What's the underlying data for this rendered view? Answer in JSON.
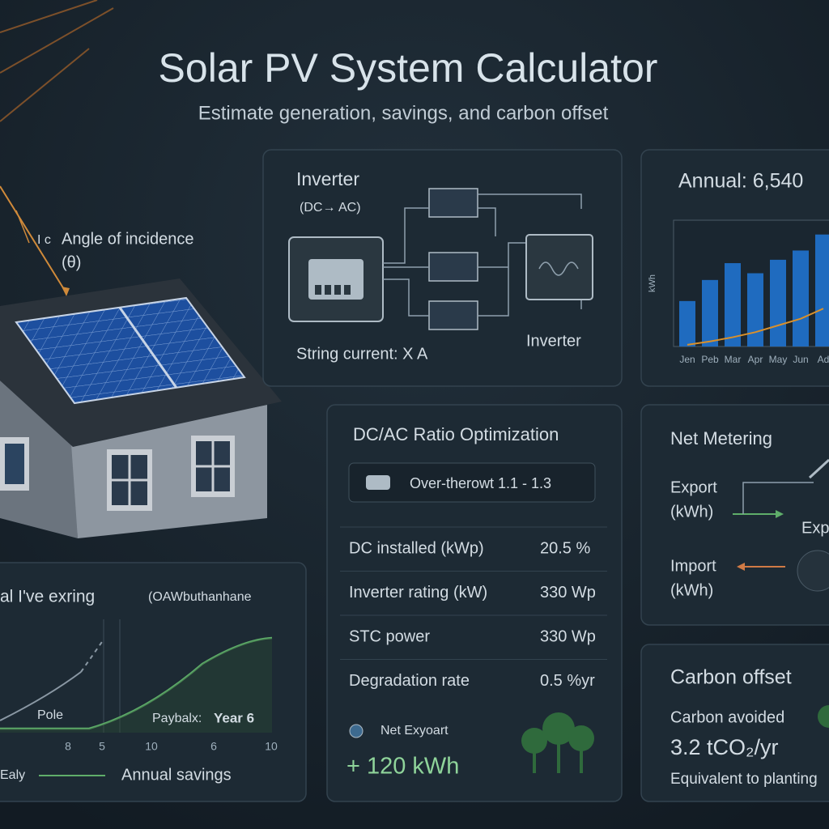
{
  "header": {
    "title": "Solar PV System Calculator",
    "subtitle": "Estimate generation, savings, and carbon offset"
  },
  "illustration": {
    "marker": "I c",
    "angle_label": "Angle of incidence",
    "angle_symbol": "(θ)"
  },
  "inverter_panel": {
    "title": "Inverter",
    "subtitle": "(DC→ AC)",
    "string_current": "String current: X A",
    "inverter_label": "Inverter"
  },
  "annual_chart": {
    "type": "bar",
    "title": "Annual: 6,540",
    "y_label": "kWh",
    "categories": [
      "Jen",
      "Peb",
      "Mar",
      "Apr",
      "May",
      "Jun",
      "Ad"
    ],
    "values": [
      54,
      79,
      99,
      87,
      103,
      114,
      133
    ],
    "trend": [
      2,
      6,
      11,
      17,
      25,
      33,
      45
    ],
    "ylim": [
      0,
      150
    ],
    "color": "#1f6bbf",
    "trend_color": "#d9902b"
  },
  "dcac_panel": {
    "title": "DC/AC Ratio Optimization",
    "range": "Over-therowt 1.1 - 1.3",
    "rows": [
      [
        "DC installed (kWp)",
        "20.5 %"
      ],
      [
        "Inverter rating (kW)",
        "330 Wp"
      ],
      [
        "STC power",
        "330 Wp"
      ],
      [
        "Degradation rate",
        "0.5 %yr"
      ]
    ],
    "net_export_label": "Net Exyoart",
    "net_export_value": "+ 120 kWh"
  },
  "net_metering": {
    "title": "Net Metering",
    "export": "Export",
    "export_unit": "(kWh)",
    "import": "Import",
    "import_unit": "(kWh)",
    "side_label": "Exp"
  },
  "carbon": {
    "title": "Carbon offset",
    "avoided_label": "Carbon avoided",
    "avoided_value": "3.2 tCO₂/yr",
    "equivalent": "Equivalent to planting"
  },
  "payback": {
    "title": "al I've exring",
    "subtitle": "(OAWbuthanhane",
    "pole": "Pole",
    "payback_label": "Paybalx:",
    "payback_year": "Year 6",
    "x_ticks": [
      "8",
      "5",
      "10",
      "6",
      "10"
    ],
    "legend_left": "Ealy",
    "legend_right": "Annual savings"
  }
}
